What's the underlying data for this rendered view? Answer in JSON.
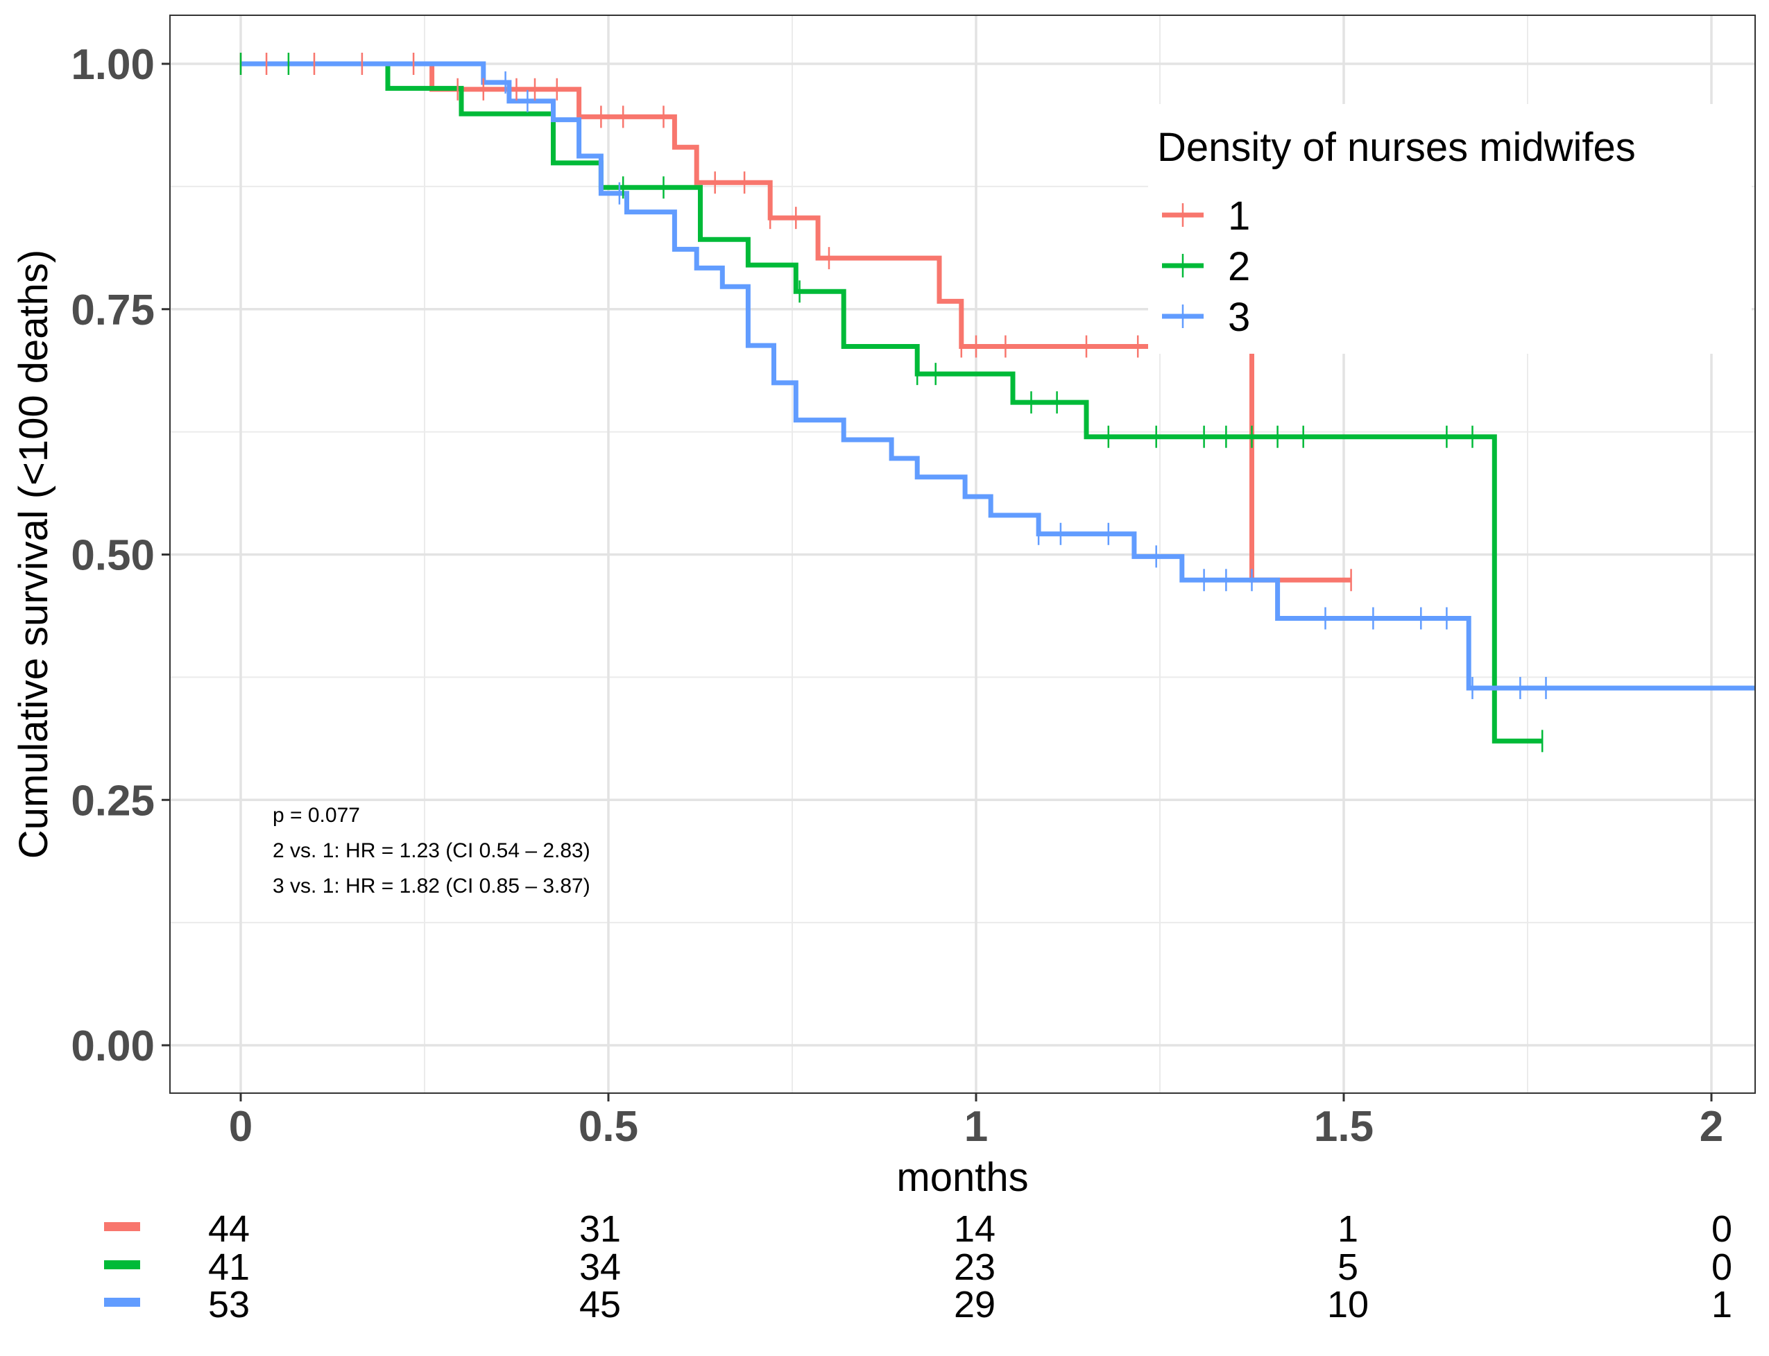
{
  "chart_data": {
    "type": "line",
    "subtype": "kaplan-meier step plot",
    "title": "",
    "xlabel": "months",
    "ylabel": "Cumulative survival (<100 deaths)",
    "xlim": [
      -0.1,
      2.06
    ],
    "ylim": [
      -0.1,
      1.05
    ],
    "x_ticks": [
      0,
      0.5,
      1,
      1.5,
      2
    ],
    "x_tick_labels": [
      "0",
      "0.5",
      "1",
      "1.5",
      "2"
    ],
    "y_ticks": [
      0,
      0.25,
      0.5,
      0.75,
      1
    ],
    "y_tick_labels": [
      "0.00",
      "0.25",
      "0.50",
      "0.75",
      "1.00"
    ],
    "grid": true,
    "legend": {
      "title": "Density of nurses midwifes",
      "position": "top-right",
      "entries": [
        "1",
        "2",
        "3"
      ]
    },
    "annotations": [
      "p = 0.077",
      "2 vs. 1: HR = 1.23 (CI 0.54 – 2.83)",
      "3 vs. 1: HR = 1.82 (CI 0.85 – 3.87)"
    ],
    "series": [
      {
        "name": "1",
        "color": "#F8766D",
        "steps": [
          [
            0,
            1.0
          ],
          [
            0.26,
            0.974
          ],
          [
            0.46,
            0.946
          ],
          [
            0.59,
            0.915
          ],
          [
            0.62,
            0.879
          ],
          [
            0.72,
            0.843
          ],
          [
            0.785,
            0.802
          ],
          [
            0.95,
            0.758
          ],
          [
            0.98,
            0.712
          ],
          [
            1.375,
            0.474
          ]
        ],
        "end_x": 1.51,
        "censors": [
          [
            0,
            1.0
          ],
          [
            0.035,
            1.0
          ],
          [
            0.1,
            1.0
          ],
          [
            0.165,
            1.0
          ],
          [
            0.235,
            1.0
          ],
          [
            0.295,
            0.974
          ],
          [
            0.33,
            0.974
          ],
          [
            0.375,
            0.974
          ],
          [
            0.4,
            0.974
          ],
          [
            0.43,
            0.974
          ],
          [
            0.49,
            0.946
          ],
          [
            0.52,
            0.946
          ],
          [
            0.575,
            0.946
          ],
          [
            0.645,
            0.879
          ],
          [
            0.685,
            0.879
          ],
          [
            0.72,
            0.843
          ],
          [
            0.755,
            0.843
          ],
          [
            0.8,
            0.802
          ],
          [
            0.98,
            0.712
          ],
          [
            1.0,
            0.712
          ],
          [
            1.04,
            0.712
          ],
          [
            1.15,
            0.712
          ],
          [
            1.22,
            0.712
          ],
          [
            1.51,
            0.474
          ]
        ]
      },
      {
        "name": "2",
        "color": "#00BA38",
        "steps": [
          [
            0,
            1.0
          ],
          [
            0.2,
            0.975
          ],
          [
            0.3,
            0.949
          ],
          [
            0.425,
            0.899
          ],
          [
            0.49,
            0.874
          ],
          [
            0.625,
            0.821
          ],
          [
            0.69,
            0.795
          ],
          [
            0.755,
            0.768
          ],
          [
            0.82,
            0.712
          ],
          [
            0.92,
            0.684
          ],
          [
            1.05,
            0.655
          ],
          [
            1.15,
            0.62
          ],
          [
            1.705,
            0.31
          ]
        ],
        "end_x": 1.77,
        "censors": [
          [
            0,
            1.0
          ],
          [
            0.065,
            1.0
          ],
          [
            0.52,
            0.874
          ],
          [
            0.575,
            0.874
          ],
          [
            0.76,
            0.768
          ],
          [
            0.92,
            0.684
          ],
          [
            0.945,
            0.684
          ],
          [
            1.075,
            0.655
          ],
          [
            1.11,
            0.655
          ],
          [
            1.18,
            0.62
          ],
          [
            1.245,
            0.62
          ],
          [
            1.31,
            0.62
          ],
          [
            1.34,
            0.62
          ],
          [
            1.375,
            0.62
          ],
          [
            1.41,
            0.62
          ],
          [
            1.445,
            0.62
          ],
          [
            1.64,
            0.62
          ],
          [
            1.675,
            0.62
          ],
          [
            1.77,
            0.31
          ]
        ]
      },
      {
        "name": "3",
        "color": "#619CFF",
        "steps": [
          [
            0,
            1.0
          ],
          [
            0.33,
            0.981
          ],
          [
            0.365,
            0.962
          ],
          [
            0.425,
            0.943
          ],
          [
            0.46,
            0.906
          ],
          [
            0.49,
            0.868
          ],
          [
            0.525,
            0.849
          ],
          [
            0.59,
            0.811
          ],
          [
            0.62,
            0.792
          ],
          [
            0.655,
            0.773
          ],
          [
            0.69,
            0.713
          ],
          [
            0.725,
            0.675
          ],
          [
            0.755,
            0.637
          ],
          [
            0.82,
            0.617
          ],
          [
            0.885,
            0.598
          ],
          [
            0.92,
            0.579
          ],
          [
            0.985,
            0.559
          ],
          [
            1.02,
            0.54
          ],
          [
            1.085,
            0.521
          ],
          [
            1.215,
            0.498
          ],
          [
            1.28,
            0.474
          ],
          [
            1.41,
            0.435
          ],
          [
            1.67,
            0.364
          ]
        ],
        "end_x": 2.06,
        "censors": [
          [
            0.36,
            0.981
          ],
          [
            0.39,
            0.962
          ],
          [
            0.515,
            0.868
          ],
          [
            1.085,
            0.521
          ],
          [
            1.115,
            0.521
          ],
          [
            1.18,
            0.521
          ],
          [
            1.245,
            0.498
          ],
          [
            1.31,
            0.474
          ],
          [
            1.34,
            0.474
          ],
          [
            1.375,
            0.474
          ],
          [
            1.475,
            0.435
          ],
          [
            1.54,
            0.435
          ],
          [
            1.605,
            0.435
          ],
          [
            1.64,
            0.435
          ],
          [
            1.675,
            0.364
          ],
          [
            1.74,
            0.364
          ],
          [
            1.775,
            0.364
          ]
        ]
      }
    ],
    "risk_table": {
      "times": [
        "0",
        "0.5",
        "1",
        "1.5",
        "2"
      ],
      "rows": [
        {
          "color": "#F8766D",
          "counts": [
            "44",
            "31",
            "14",
            "1",
            "0"
          ]
        },
        {
          "color": "#00BA38",
          "counts": [
            "41",
            "34",
            "23",
            "5",
            "0"
          ]
        },
        {
          "color": "#619CFF",
          "counts": [
            "53",
            "45",
            "29",
            "10",
            "1"
          ]
        }
      ]
    }
  }
}
